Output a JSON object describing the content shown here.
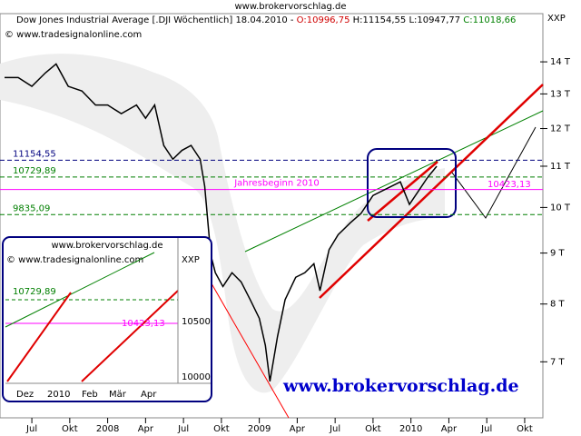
{
  "chart_data": {
    "type": "line",
    "site": "www.brokervorschlag.de",
    "header": {
      "title": "Dow Jones Industrial Average [.DJI  Wöchentlich] 18.04.2010 -",
      "open": "O:10996,75",
      "high": "H:11154,55",
      "low": "L:10947,77",
      "close": "C:11018,66"
    },
    "copyright": "© www.tradesignalonline.com",
    "symbol": "XXP",
    "watermark": "www.brokervorschlag.de",
    "log_scale": true,
    "color": "#000000",
    "x": [
      2007.32,
      2007.41,
      2007.5,
      2007.59,
      2007.66,
      2007.74,
      2007.83,
      2007.92,
      2008.0,
      2008.09,
      2008.19,
      2008.25,
      2008.31,
      2008.37,
      2008.43,
      2008.49,
      2008.55,
      2008.61,
      2008.64,
      2008.68,
      2008.71,
      2008.76,
      2008.82,
      2008.88,
      2008.94,
      2009.0,
      2009.04,
      2009.07,
      2009.12,
      2009.17,
      2009.24,
      2009.3,
      2009.36,
      2009.4,
      2009.46,
      2009.52,
      2009.6,
      2009.67,
      2009.75,
      2009.81,
      2009.87,
      2009.93,
      2009.99,
      2010.05,
      2010.11,
      2010.17
    ],
    "values": [
      13500,
      13500,
      13230,
      13650,
      13930,
      13230,
      13090,
      12670,
      12670,
      12420,
      12670,
      12290,
      12670,
      11540,
      11180,
      11410,
      11540,
      11180,
      10500,
      8960,
      8600,
      8330,
      8600,
      8420,
      8080,
      7740,
      7270,
      6690,
      7420,
      8080,
      8510,
      8600,
      8780,
      8250,
      9070,
      9390,
      9650,
      9860,
      10280,
      10390,
      10500,
      10610,
      10070,
      10390,
      10720,
      11000
    ],
    "xlim": [
      2007.29,
      2010.87
    ],
    "xticks": [
      {
        "value": 2007.5,
        "label": "Jul"
      },
      {
        "value": 2007.75,
        "label": "Okt"
      },
      {
        "value": 2008.0,
        "label": "2008"
      },
      {
        "value": 2008.25,
        "label": "Apr"
      },
      {
        "value": 2008.5,
        "label": "Jul"
      },
      {
        "value": 2008.75,
        "label": "Okt"
      },
      {
        "value": 2009.0,
        "label": "2009"
      },
      {
        "value": 2009.25,
        "label": "Apr"
      },
      {
        "value": 2009.5,
        "label": "Jul"
      },
      {
        "value": 2009.75,
        "label": "Okt"
      },
      {
        "value": 2010.0,
        "label": "2010"
      },
      {
        "value": 2010.25,
        "label": "Apr"
      },
      {
        "value": 2010.5,
        "label": "Jul"
      },
      {
        "value": 2010.75,
        "label": "Okt"
      }
    ],
    "ylim": [
      6150,
      15650
    ],
    "yticks": [
      {
        "value": 7000,
        "label": "7 T"
      },
      {
        "value": 8000,
        "label": "8 T"
      },
      {
        "value": 9000,
        "label": "9 T"
      },
      {
        "value": 10000,
        "label": "10 T"
      },
      {
        "value": 11000,
        "label": "11 T"
      },
      {
        "value": 12000,
        "label": "12 T"
      },
      {
        "value": 13000,
        "label": "13 T"
      },
      {
        "value": 14000,
        "label": "14 T"
      }
    ],
    "levels": [
      {
        "value": 11154.55,
        "label": "11154,55",
        "color": "#00007f"
      },
      {
        "value": 10729.89,
        "label": "10729,89",
        "color": "#007f00"
      },
      {
        "value": 9835.09,
        "label": "9835,09",
        "color": "#007f00"
      },
      {
        "value": 10423.13,
        "label": "Jahresbeginn 2010",
        "color": "#ff00ff"
      }
    ],
    "target_label": "10423,13",
    "inset": {
      "site": "www.brokervorschlag.de",
      "copyright": "© www.tradesignalonline.com",
      "symbol": "XXP",
      "level_high": "10729,89",
      "level_start": "10423,13",
      "yticks": [
        "10500",
        "10000"
      ],
      "xticks": [
        "Dez",
        "2010",
        "Feb",
        "Mär",
        "Apr"
      ]
    }
  }
}
